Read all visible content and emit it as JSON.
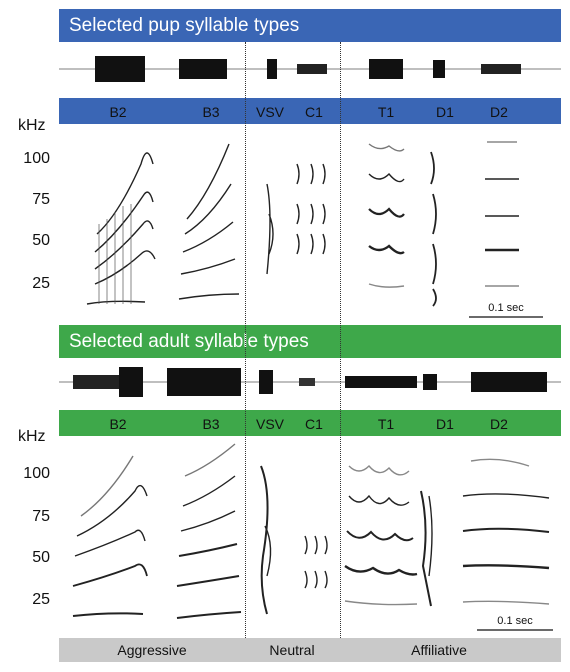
{
  "pup": {
    "title": "Selected pup syllable types",
    "color": "#3a66b5",
    "syllables": [
      "B2",
      "B3",
      "VSV",
      "C1",
      "T1",
      "D1",
      "D2"
    ],
    "ticks": [
      "100",
      "75",
      "50",
      "25"
    ],
    "unit": "kHz",
    "scale": "0.1 sec"
  },
  "adult": {
    "title": "Selected adult syllable types",
    "color": "#3ea84a",
    "syllables": [
      "B2",
      "B3",
      "VSV",
      "C1",
      "T1",
      "D1",
      "D2"
    ],
    "ticks": [
      "100",
      "75",
      "50",
      "25"
    ],
    "unit": "kHz",
    "scale": "0.1 sec"
  },
  "categories": [
    "Aggressive",
    "Neutral",
    "Affiliative"
  ]
}
